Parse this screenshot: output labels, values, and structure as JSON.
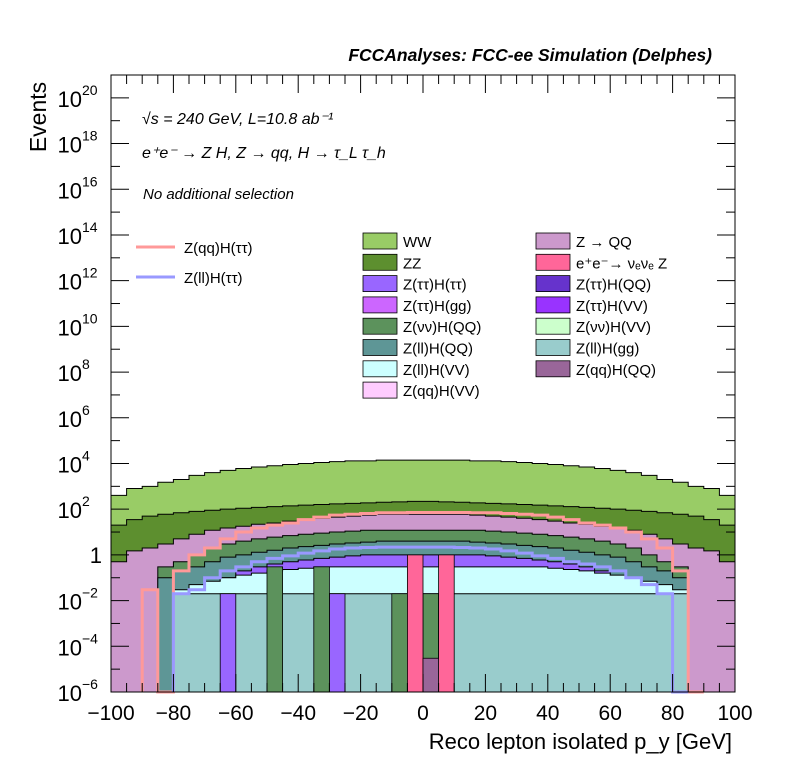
{
  "chart_data": {
    "type": "histogram-stacked-log",
    "title": "FCCAnalyses: FCC-ee Simulation (Delphes)",
    "annotations": {
      "energy_lumi": "√s = 240 GeV, L=10.8 ab⁻¹",
      "process": "e⁺e⁻ → Z H, Z → qq, H → τ_L τ_h",
      "selection": "No additional selection"
    },
    "xlabel": "Reco lepton isolated p_y [GeV]",
    "ylabel": "Events",
    "xlim": [
      -100,
      100
    ],
    "ylim": [
      1e-06,
      1e+21
    ],
    "xscale": "linear",
    "yscale": "log",
    "x_ticks": [
      "−100",
      "−80",
      "−60",
      "−40",
      "−20",
      "0",
      "20",
      "40",
      "60",
      "80",
      "100"
    ],
    "y_ticks": [
      {
        "base": "10",
        "exp": "−6"
      },
      {
        "base": "10",
        "exp": "−4"
      },
      {
        "base": "10",
        "exp": "−2"
      },
      {
        "base": "1",
        "exp": ""
      },
      {
        "base": "10",
        "exp": "2"
      },
      {
        "base": "10",
        "exp": "4"
      },
      {
        "base": "10",
        "exp": "6"
      },
      {
        "base": "10",
        "exp": "8"
      },
      {
        "base": "10",
        "exp": "10"
      },
      {
        "base": "10",
        "exp": "12"
      },
      {
        "base": "10",
        "exp": "14"
      },
      {
        "base": "10",
        "exp": "16"
      },
      {
        "base": "10",
        "exp": "18"
      },
      {
        "base": "10",
        "exp": "20"
      }
    ],
    "bins": {
      "start": -100,
      "width": 5,
      "count": 40
    },
    "stack_bin_edges": [
      -100,
      -95,
      -90,
      -85,
      -80,
      -75,
      -70,
      -65,
      -60,
      -55,
      -50,
      -45,
      -40,
      -35,
      -30,
      -25,
      -20,
      -15,
      -10,
      -5,
      0,
      5,
      10,
      15,
      20,
      25,
      30,
      35,
      40,
      45,
      50,
      55,
      60,
      65,
      70,
      75,
      80,
      85,
      90,
      95,
      100
    ],
    "stack_bands": [
      {
        "name": "WW",
        "color": "#99cc66",
        "edge": "#000000",
        "top": [
          400,
          800,
          1000,
          1500,
          2000,
          3000,
          4000,
          5000,
          6000,
          7000,
          8000,
          9000,
          10000,
          11000,
          12000,
          13000,
          13000,
          14000,
          14000,
          14000,
          14000,
          14000,
          14000,
          13000,
          13000,
          12000,
          11000,
          10000,
          9000,
          8000,
          7000,
          6000,
          5000,
          4000,
          3000,
          2000,
          1500,
          1000,
          800,
          400
        ]
      },
      {
        "name": "ZZ",
        "color": "#5d8f2f",
        "edge": "#000000",
        "top": [
          20,
          35,
          50,
          60,
          70,
          80,
          90,
          100,
          110,
          120,
          130,
          140,
          150,
          160,
          170,
          180,
          190,
          200,
          210,
          220,
          220,
          210,
          200,
          190,
          180,
          170,
          160,
          150,
          140,
          130,
          120,
          110,
          100,
          90,
          80,
          70,
          60,
          50,
          35,
          20
        ]
      },
      {
        "name": "Z → QQ",
        "color": "#cc99cc",
        "edge": "#000000",
        "top": [
          0.5,
          1.5,
          2,
          3,
          5,
          8,
          12,
          15,
          18,
          22,
          25,
          30,
          35,
          40,
          45,
          50,
          55,
          60,
          60,
          60,
          60,
          60,
          60,
          55,
          50,
          45,
          40,
          35,
          30,
          25,
          22,
          18,
          15,
          12,
          8,
          5,
          3,
          2,
          1.5,
          0.5
        ]
      },
      {
        "name": "Z(νν)H(QQ)",
        "color": "#5c925c",
        "edge": "#000000",
        "top": [
          1e-06,
          1e-06,
          1e-06,
          0.3,
          0.5,
          1,
          2,
          3,
          4,
          5,
          6,
          7,
          8,
          9,
          10,
          11,
          12,
          12,
          12,
          12,
          12,
          12,
          12,
          12,
          11,
          10,
          9,
          8,
          7,
          6,
          5,
          4,
          3,
          2,
          1,
          0.5,
          0.3,
          1e-06,
          1e-06,
          1e-06
        ]
      },
      {
        "name": "Z(ll)H(QQ)",
        "color": "#5e9696",
        "edge": "#000000",
        "top": [
          1e-06,
          1e-06,
          1e-06,
          0.1,
          0.2,
          0.3,
          0.5,
          0.8,
          1,
          1.3,
          1.6,
          2,
          2.3,
          2.6,
          3,
          3.3,
          3.6,
          4,
          4,
          4,
          4,
          4,
          4,
          3.6,
          3.3,
          3,
          2.6,
          2.3,
          2,
          1.6,
          1.3,
          1,
          0.8,
          0.5,
          0.3,
          0.2,
          0.1,
          1e-06,
          1e-06,
          1e-06
        ]
      },
      {
        "name": "Z(ττ)H(ττ)",
        "color": "#9966ff",
        "edge": "#000000",
        "top": [
          1e-06,
          1e-06,
          1e-06,
          1e-06,
          1e-06,
          1e-06,
          0.05,
          0.1,
          0.2,
          0.3,
          0.4,
          0.5,
          0.6,
          0.7,
          0.8,
          0.9,
          1,
          1,
          1,
          1,
          1,
          1,
          1,
          1,
          0.9,
          0.8,
          0.7,
          0.6,
          0.5,
          0.4,
          0.3,
          0.2,
          0.1,
          0.05,
          1e-06,
          1e-06,
          1e-06,
          1e-06,
          1e-06,
          1e-06
        ]
      },
      {
        "name": "Z(ll)H(VV)",
        "color": "#ccffff",
        "edge": "#000000",
        "top": [
          1e-06,
          1e-06,
          1e-06,
          1e-06,
          0.03,
          0.05,
          0.07,
          0.1,
          0.13,
          0.16,
          0.2,
          0.23,
          0.26,
          0.3,
          0.3,
          0.3,
          0.3,
          0.3,
          0.3,
          0.3,
          0.3,
          0.3,
          0.3,
          0.3,
          0.3,
          0.3,
          0.3,
          0.3,
          0.26,
          0.23,
          0.2,
          0.16,
          0.13,
          0.1,
          0.07,
          0.05,
          0.03,
          1e-06,
          1e-06,
          1e-06
        ]
      },
      {
        "name": "Z(ll)H(gg)",
        "color": "#99cccc",
        "edge": "#000000",
        "top": [
          1e-06,
          1e-06,
          1e-06,
          1e-06,
          0.02,
          0.02,
          0.02,
          0.02,
          0.02,
          0.02,
          0.02,
          0.02,
          0.02,
          0.02,
          0.02,
          0.02,
          0.02,
          0.02,
          0.02,
          0.02,
          0.02,
          0.02,
          0.02,
          0.02,
          0.02,
          0.02,
          0.02,
          0.02,
          0.02,
          0.02,
          0.02,
          0.02,
          0.02,
          0.02,
          0.02,
          0.02,
          0.02,
          1e-06,
          1e-06,
          1e-06
        ]
      }
    ],
    "sparse_bars": [
      {
        "name": "Z(ττ)H(QQ)",
        "color": "#9966ff",
        "x0": -65,
        "x1": -60,
        "top": 0.02
      },
      {
        "name": "Z(ττ)H(QQ)",
        "color": "#9966ff",
        "x0": -30,
        "x1": -25,
        "top": 0.02
      },
      {
        "name": "Z(νν)H(QQ)",
        "color": "#5c925c",
        "x0": -50,
        "x1": -45,
        "top": 0.3
      },
      {
        "name": "Z(νν)H(QQ)",
        "color": "#5c925c",
        "x0": -35,
        "x1": -30,
        "top": 0.3
      },
      {
        "name": "Z(νν)H(QQ)",
        "color": "#5c925c",
        "x0": -10,
        "x1": -5,
        "top": 0.02
      },
      {
        "name": "Z(νν)H(QQ)",
        "color": "#5c925c",
        "x0": 0,
        "x1": 5,
        "top": 0.02
      },
      {
        "name": "e⁺e⁻→ νₑνₑ Z",
        "color": "#ff6699",
        "x0": -5,
        "x1": 0,
        "top": 1
      },
      {
        "name": "e⁺e⁻→ νₑνₑ Z",
        "color": "#ff6699",
        "x0": 5,
        "x1": 10,
        "top": 1
      },
      {
        "name": "Z(qq)H(QQ)",
        "color": "#996699",
        "x0": 0,
        "x1": 5,
        "top": 3e-05
      }
    ],
    "line_series": [
      {
        "name": "Z(qq)H(ττ)",
        "color": "#ff9999",
        "edges": [
          -90,
          -85,
          -80,
          -75,
          -70,
          -65,
          -60,
          -55,
          -50,
          -45,
          -40,
          -35,
          -30,
          -25,
          -20,
          -15,
          -10,
          -5,
          0,
          5,
          10,
          15,
          20,
          25,
          30,
          35,
          40,
          45,
          50,
          55,
          60,
          65,
          70,
          75,
          80,
          85,
          90
        ],
        "values": [
          0.03,
          1e-06,
          0.2,
          1,
          2,
          5,
          10,
          15,
          20,
          25,
          35,
          45,
          55,
          60,
          65,
          70,
          70,
          72,
          72,
          72,
          72,
          70,
          70,
          65,
          60,
          55,
          45,
          35,
          25,
          20,
          15,
          10,
          5,
          2,
          0.2,
          1e-06
        ]
      },
      {
        "name": "Z(ll)H(ττ)",
        "color": "#9999ff",
        "edges": [
          -80,
          -75,
          -70,
          -65,
          -60,
          -55,
          -50,
          -45,
          -40,
          -35,
          -30,
          -25,
          -20,
          -15,
          -10,
          -5,
          0,
          5,
          10,
          15,
          20,
          25,
          30,
          35,
          40,
          45,
          50,
          55,
          60,
          65,
          70,
          75,
          80,
          85
        ],
        "values": [
          0.02,
          0.03,
          0.1,
          0.2,
          0.3,
          0.5,
          0.7,
          0.9,
          1.2,
          1.5,
          1.8,
          2,
          2.1,
          2.2,
          2.2,
          2.2,
          2.2,
          2.2,
          2.1,
          2,
          1.8,
          1.5,
          1.2,
          0.9,
          0.7,
          0.5,
          0.4,
          0.3,
          0.2,
          0.1,
          0.05,
          0.02,
          1e-06
        ]
      }
    ],
    "legend_left": [
      {
        "label": "Z(qq)H(ττ)",
        "color": "#ff9999"
      },
      {
        "label": "Z(ll)H(ττ)",
        "color": "#9999ff"
      }
    ],
    "legend_col1": [
      {
        "label": "WW",
        "color": "#99cc66"
      },
      {
        "label": "ZZ",
        "color": "#5d8f2f"
      },
      {
        "label": "Z(ττ)H(ττ)",
        "color": "#9966ff"
      },
      {
        "label": "Z(ττ)H(gg)",
        "color": "#cc66ff"
      },
      {
        "label": "Z(νν)H(QQ)",
        "color": "#5c925c"
      },
      {
        "label": "Z(ll)H(QQ)",
        "color": "#5e9696"
      },
      {
        "label": "Z(ll)H(VV)",
        "color": "#ccffff"
      },
      {
        "label": "Z(qq)H(VV)",
        "color": "#ffccff"
      }
    ],
    "legend_col2": [
      {
        "label": "Z → QQ",
        "color": "#cc99cc"
      },
      {
        "label": "e⁺e⁻→ νₑνₑ Z",
        "color": "#ff6699"
      },
      {
        "label": "Z(ττ)H(QQ)",
        "color": "#6633cc"
      },
      {
        "label": "Z(ττ)H(VV)",
        "color": "#9933ff"
      },
      {
        "label": "Z(νν)H(VV)",
        "color": "#ccffcc"
      },
      {
        "label": "Z(ll)H(gg)",
        "color": "#99cccc"
      },
      {
        "label": "Z(qq)H(QQ)",
        "color": "#996699"
      }
    ]
  }
}
